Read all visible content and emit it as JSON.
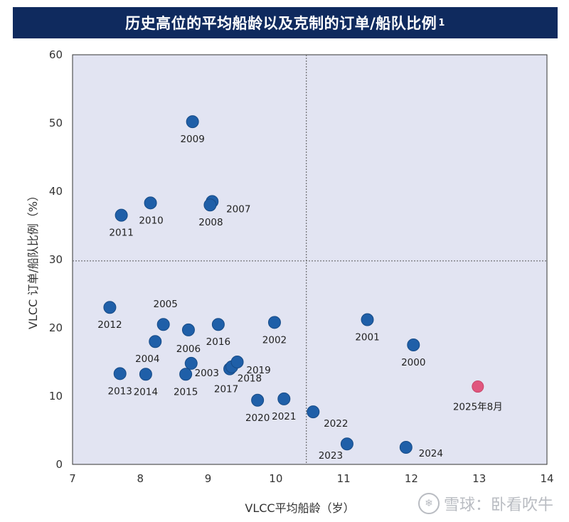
{
  "header": {
    "title": "历史高位的平均船龄以及克制的订单/船队比例",
    "footnote_mark": "1"
  },
  "watermark": {
    "icon": "snowball-logo-icon",
    "text": "雪球：卧看吹牛"
  },
  "chart_data": {
    "type": "scatter",
    "xlabel": "VLCC平均船龄（岁）",
    "ylabel": "VLCC 订单/船队比例（%）",
    "xlim": [
      7,
      14
    ],
    "ylim": [
      0,
      60
    ],
    "xticks": [
      7,
      8,
      9,
      10,
      11,
      12,
      13,
      14
    ],
    "yticks": [
      0,
      10,
      20,
      30,
      40,
      50,
      60
    ],
    "reference_lines": {
      "x": 10.45,
      "y": 29.8
    },
    "colors": {
      "plot_bg": "#e2e4f2",
      "point": "#1f5fa8",
      "highlight": "#e0567e",
      "ref_line": "#555555"
    },
    "points": [
      {
        "label": "2000",
        "x": 12.03,
        "y": 17.5
      },
      {
        "label": "2001",
        "x": 11.35,
        "y": 21.2
      },
      {
        "label": "2002",
        "x": 9.98,
        "y": 20.8
      },
      {
        "label": "2003",
        "x": 8.75,
        "y": 14.8
      },
      {
        "label": "2004",
        "x": 8.22,
        "y": 18.0
      },
      {
        "label": "2005",
        "x": 8.34,
        "y": 20.5
      },
      {
        "label": "2006",
        "x": 8.71,
        "y": 19.7
      },
      {
        "label": "2007",
        "x": 9.06,
        "y": 38.5
      },
      {
        "label": "2008",
        "x": 9.03,
        "y": 38.0
      },
      {
        "label": "2009",
        "x": 8.77,
        "y": 50.2
      },
      {
        "label": "2010",
        "x": 8.15,
        "y": 38.3
      },
      {
        "label": "2011",
        "x": 7.72,
        "y": 36.5
      },
      {
        "label": "2012",
        "x": 7.55,
        "y": 23.0
      },
      {
        "label": "2013",
        "x": 7.7,
        "y": 13.3
      },
      {
        "label": "2014",
        "x": 8.08,
        "y": 13.2
      },
      {
        "label": "2015",
        "x": 8.67,
        "y": 13.2
      },
      {
        "label": "2016",
        "x": 9.15,
        "y": 20.5
      },
      {
        "label": "2017",
        "x": 9.32,
        "y": 14.0
      },
      {
        "label": "2018",
        "x": 9.35,
        "y": 14.3
      },
      {
        "label": "2019",
        "x": 9.43,
        "y": 15.0
      },
      {
        "label": "2020",
        "x": 9.73,
        "y": 9.4
      },
      {
        "label": "2021",
        "x": 10.12,
        "y": 9.6
      },
      {
        "label": "2022",
        "x": 10.55,
        "y": 7.7
      },
      {
        "label": "2023",
        "x": 11.05,
        "y": 3.0
      },
      {
        "label": "2024",
        "x": 11.92,
        "y": 2.5
      },
      {
        "label": "2025年8月",
        "x": 12.98,
        "y": 11.4,
        "highlight": true
      }
    ]
  }
}
